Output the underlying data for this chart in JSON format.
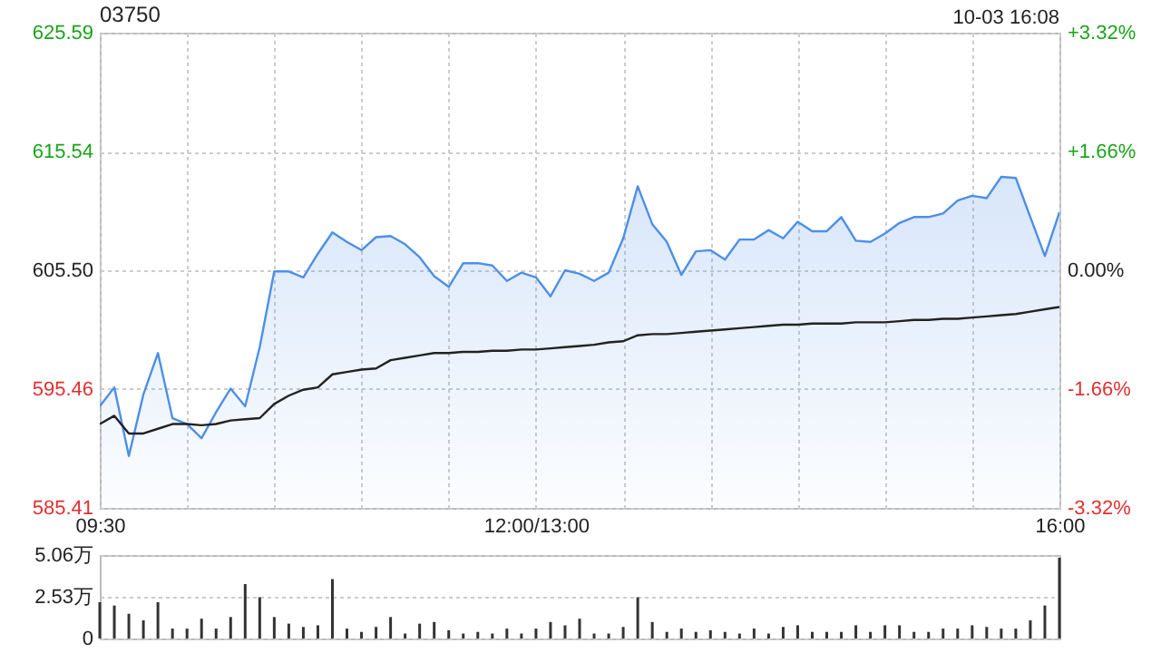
{
  "chart_data": [
    {
      "type": "area",
      "title": "03750",
      "annotations": [
        "10-03 16:08"
      ],
      "categories": [
        "09:30",
        null,
        null,
        null,
        null,
        null,
        null,
        null,
        null,
        null,
        null,
        null,
        null,
        null,
        null,
        null,
        null,
        null,
        null,
        null,
        null,
        null,
        null,
        null,
        null,
        null,
        null,
        null,
        null,
        null,
        "12:00/13:00",
        null,
        null,
        null,
        null,
        null,
        null,
        null,
        null,
        null,
        null,
        null,
        null,
        null,
        null,
        null,
        null,
        null,
        null,
        null,
        null,
        null,
        null,
        null,
        null,
        null,
        null,
        null,
        null,
        null,
        null,
        null,
        null,
        null,
        null,
        null,
        "16:00"
      ],
      "ylim": [
        585.41,
        625.59
      ],
      "yticks": [
        585.41,
        595.46,
        {
          "value": 605.5,
          "label": "605.50"
        },
        615.54,
        625.59
      ],
      "y2lim": [
        -3.32,
        3.32
      ],
      "y2ticks": [
        {
          "value": -3.32,
          "label": "-3.32%"
        },
        {
          "value": -1.66,
          "label": "-1.66%"
        },
        {
          "value": 0,
          "label": "0.00%"
        },
        {
          "value": 1.66,
          "label": "+1.66%"
        },
        {
          "value": 3.32,
          "label": "+3.32%"
        }
      ],
      "grid": true,
      "series": [
        {
          "color": "#4d8fe8",
          "values": [
            594.0,
            595.6,
            589.8,
            595.0,
            598.5,
            593.0,
            592.5,
            591.3,
            593.5,
            595.5,
            594.0,
            599.0,
            605.4,
            605.4,
            604.9,
            606.9,
            608.7,
            607.9,
            607.2,
            608.3,
            608.4,
            607.7,
            606.6,
            605.0,
            604.1,
            606.1,
            606.1,
            605.9,
            604.6,
            605.3,
            604.9,
            603.3,
            605.5,
            605.2,
            604.6,
            605.3,
            608.2,
            612.6,
            609.4,
            607.9,
            605.1,
            607.1,
            607.2,
            606.4,
            608.1,
            608.1,
            608.9,
            608.2,
            609.6,
            608.8,
            608.8,
            610.0,
            608.0,
            607.9,
            608.6,
            609.5,
            610.0,
            610.0,
            610.3,
            611.4,
            611.8,
            611.6,
            613.4,
            613.3,
            610.0,
            606.7,
            610.4
          ]
        },
        {
          "type": "line",
          "color": "#222222",
          "values": [
            592.5,
            593.2,
            591.7,
            591.7,
            592.1,
            592.5,
            592.5,
            592.4,
            592.5,
            592.8,
            592.9,
            593.0,
            594.2,
            594.9,
            595.4,
            595.6,
            596.7,
            596.9,
            597.1,
            597.2,
            597.9,
            598.1,
            598.3,
            598.5,
            598.5,
            598.6,
            598.6,
            598.7,
            598.7,
            598.8,
            598.8,
            598.9,
            599.0,
            599.1,
            599.2,
            599.4,
            599.5,
            600.0,
            600.1,
            600.1,
            600.2,
            600.3,
            600.4,
            600.5,
            600.6,
            600.7,
            600.8,
            600.9,
            600.9,
            601.0,
            601.0,
            601.0,
            601.1,
            601.1,
            601.1,
            601.2,
            601.3,
            601.3,
            601.4,
            601.4,
            601.5,
            601.6,
            601.7,
            601.8,
            602.0,
            602.2,
            602.4
          ]
        }
      ]
    },
    {
      "type": "bar",
      "categories": [
        null,
        null,
        null,
        null,
        null,
        null,
        null,
        null,
        null,
        null,
        null,
        null,
        null,
        null,
        null,
        null,
        null,
        null,
        null,
        null,
        null,
        null,
        null,
        null,
        null,
        null,
        null,
        null,
        null,
        null,
        null,
        null,
        null,
        null,
        null,
        null,
        null,
        null,
        null,
        null,
        null,
        null,
        null,
        null,
        null,
        null,
        null,
        null,
        null,
        null,
        null,
        null,
        null,
        null,
        null,
        null,
        null,
        null,
        null,
        null,
        null,
        null,
        null,
        null,
        null,
        null,
        null
      ],
      "ylim": [
        0,
        5.06
      ],
      "yticks": [
        0,
        {
          "value": 2.53,
          "label": "2.53万"
        },
        {
          "value": 5.06,
          "label": "5.06万"
        }
      ],
      "grid": "y",
      "tick_labels": "y",
      "color": "#333333",
      "values": [
        2.2,
        2.0,
        1.5,
        1.1,
        2.2,
        0.6,
        0.6,
        1.2,
        0.6,
        1.3,
        3.3,
        2.5,
        1.3,
        0.9,
        0.7,
        0.8,
        3.6,
        0.6,
        0.4,
        0.7,
        1.3,
        0.3,
        0.9,
        1.0,
        0.5,
        0.3,
        0.4,
        0.3,
        0.6,
        0.3,
        0.6,
        1.0,
        0.8,
        1.2,
        0.3,
        0.3,
        0.7,
        2.5,
        1.0,
        0.4,
        0.6,
        0.4,
        0.5,
        0.4,
        0.3,
        0.6,
        0.3,
        0.7,
        0.8,
        0.4,
        0.4,
        0.4,
        0.8,
        0.4,
        0.8,
        0.8,
        0.4,
        0.4,
        0.6,
        0.6,
        0.8,
        0.7,
        0.6,
        0.6,
        1.1,
        2.0,
        4.9
      ]
    }
  ]
}
